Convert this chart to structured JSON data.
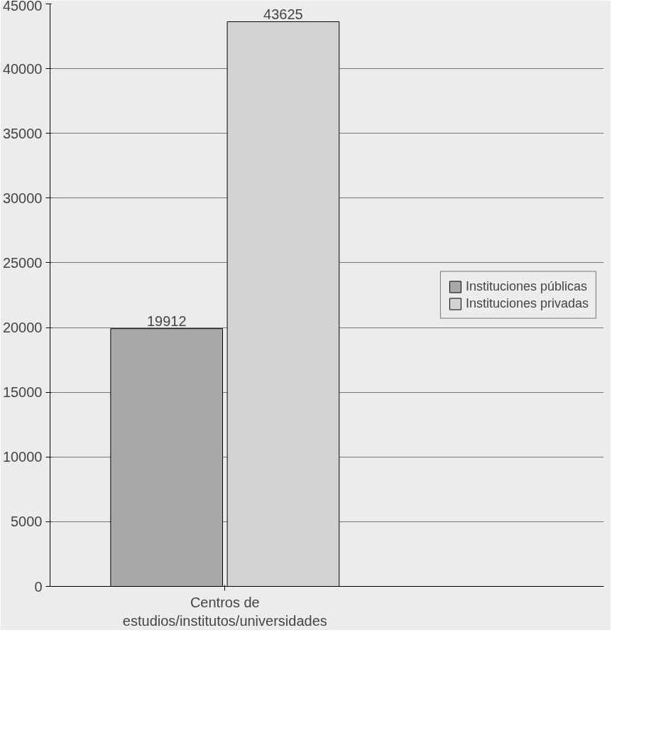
{
  "chart_data": {
    "type": "bar",
    "categories": [
      "Centros de estudios/institutos/universidades"
    ],
    "series": [
      {
        "name": "Instituciones públicas",
        "color": "#a9a9a9",
        "values": [
          19912
        ]
      },
      {
        "name": "Instituciones privadas",
        "color": "#d3d3d3",
        "values": [
          43625
        ]
      }
    ],
    "ylim": [
      0,
      45000
    ],
    "yticks": [
      0,
      5000,
      10000,
      15000,
      20000,
      25000,
      30000,
      35000,
      40000,
      45000
    ],
    "grid": "y",
    "legend": "right",
    "data_labels": true
  }
}
